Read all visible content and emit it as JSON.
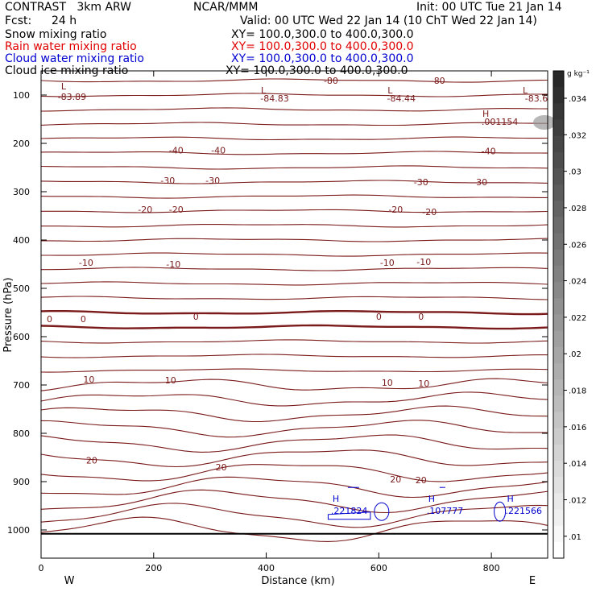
{
  "header": {
    "title": "CONTRAST   3km ARW",
    "org": "NCAR/MMM",
    "init": "Init: 00 UTC Tue 21 Jan 14",
    "fcst_label": "Fcst:",
    "fcst_value": "24 h",
    "valid": "Valid: 00 UTC Wed 22 Jan 14 (10 ChT Wed 22 Jan 14)"
  },
  "fields": [
    {
      "name": "Snow mixing ratio",
      "xy": "XY= 100.0,300.0 to 400.0,300.0",
      "color": "#000000"
    },
    {
      "name": "Rain water mixing ratio",
      "xy": "XY= 100.0,300.0 to 400.0,300.0",
      "color": "#e00000"
    },
    {
      "name": "Cloud water mixing ratio",
      "xy": "XY= 100.0,300.0 to 400.0,300.0",
      "color": "#0000d0"
    },
    {
      "name": "Cloud ice mixing ratio",
      "xy": "XY= 100.0,300.0 to 400.0,300.0",
      "color": "#000000"
    }
  ],
  "chart_data": {
    "type": "cross-section contour",
    "xlabel": "Distance (km)",
    "ylabel": "Pressure (hPa)",
    "x_ticks": [
      0,
      200,
      400,
      600,
      800
    ],
    "x_range": [
      0,
      900
    ],
    "y_ticks": [
      100,
      200,
      300,
      400,
      500,
      600,
      700,
      800,
      900,
      1000
    ],
    "y_range": [
      55,
      1050
    ],
    "end_labels": {
      "left": "W",
      "right": "E"
    },
    "colorbar": {
      "unit": "g kg⁻¹",
      "ticks": [
        ".034",
        ".032",
        ".03",
        ".028",
        ".026",
        ".024",
        ".022",
        ".02",
        ".018",
        ".016",
        ".014",
        ".012",
        ".01"
      ],
      "tick_values": [
        0.034,
        0.032,
        0.03,
        0.028,
        0.026,
        0.024,
        0.022,
        0.02,
        0.018,
        0.016,
        0.014,
        0.012,
        0.01
      ]
    },
    "contour_labels": [
      {
        "text": "L",
        "x": 40,
        "p": 82
      },
      {
        "text": "-83.89",
        "x": 55,
        "p": 103
      },
      {
        "text": "L",
        "x": 395,
        "p": 90
      },
      {
        "text": "-84.83",
        "x": 415,
        "p": 107
      },
      {
        "text": "-80",
        "x": 515,
        "p": 70
      },
      {
        "text": "L",
        "x": 620,
        "p": 90
      },
      {
        "text": "-84.44",
        "x": 640,
        "p": 107
      },
      {
        "text": "-80",
        "x": 705,
        "p": 70
      },
      {
        "text": "L",
        "x": 860,
        "p": 90
      },
      {
        "text": "-83.6",
        "x": 880,
        "p": 107
      },
      {
        "text": "H",
        "x": 790,
        "p": 138
      },
      {
        "text": ".001154",
        "x": 815,
        "p": 155
      },
      {
        "text": "-40",
        "x": 240,
        "p": 214
      },
      {
        "text": "-40",
        "x": 315,
        "p": 214
      },
      {
        "text": "-40",
        "x": 795,
        "p": 216
      },
      {
        "text": "-30",
        "x": 225,
        "p": 277
      },
      {
        "text": "-30",
        "x": 305,
        "p": 277
      },
      {
        "text": "-30",
        "x": 675,
        "p": 280
      },
      {
        "text": "-30",
        "x": 780,
        "p": 280
      },
      {
        "text": "-20",
        "x": 185,
        "p": 337
      },
      {
        "text": "-20",
        "x": 240,
        "p": 337
      },
      {
        "text": "-20",
        "x": 630,
        "p": 337
      },
      {
        "text": "-20",
        "x": 690,
        "p": 342
      },
      {
        "text": "-10",
        "x": 80,
        "p": 447
      },
      {
        "text": "-10",
        "x": 235,
        "p": 450
      },
      {
        "text": "-10",
        "x": 615,
        "p": 447
      },
      {
        "text": "-10",
        "x": 680,
        "p": 445
      },
      {
        "text": "0",
        "x": 15,
        "p": 563
      },
      {
        "text": "0",
        "x": 75,
        "p": 563
      },
      {
        "text": "0",
        "x": 275,
        "p": 558
      },
      {
        "text": "0",
        "x": 600,
        "p": 558
      },
      {
        "text": "0",
        "x": 675,
        "p": 558
      },
      {
        "text": "10",
        "x": 85,
        "p": 688
      },
      {
        "text": "10",
        "x": 230,
        "p": 690
      },
      {
        "text": "10",
        "x": 615,
        "p": 695
      },
      {
        "text": "10",
        "x": 680,
        "p": 697
      },
      {
        "text": "20",
        "x": 90,
        "p": 856
      },
      {
        "text": "20",
        "x": 320,
        "p": 870
      },
      {
        "text": "20",
        "x": 630,
        "p": 895
      },
      {
        "text": "20",
        "x": 675,
        "p": 897
      }
    ],
    "cloud_water_maxima": [
      {
        "label": "H",
        "value": ".221824",
        "x": 535,
        "p": 953
      },
      {
        "label": "H",
        "value": ".107777",
        "x": 705,
        "p": 953
      },
      {
        "label": "H",
        "value": ".221566",
        "x": 845,
        "p": 953
      }
    ]
  }
}
